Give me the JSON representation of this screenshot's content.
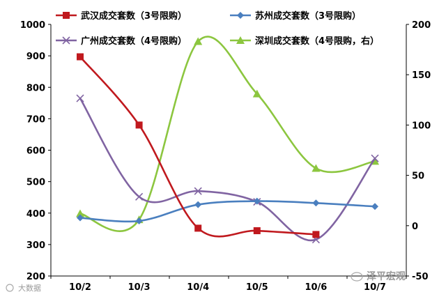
{
  "chart_data": {
    "type": "line",
    "categories": [
      "10/2",
      "10/3",
      "10/4",
      "10/5",
      "10/6",
      "10/7"
    ],
    "y_left": {
      "min": 200,
      "max": 1000,
      "step": 100,
      "ticks": [
        "200",
        "300",
        "400",
        "500",
        "600",
        "700",
        "800",
        "900",
        "1000"
      ]
    },
    "y_right": {
      "min": -50,
      "max": 200,
      "step": 50,
      "ticks": [
        "-50",
        "0",
        "50",
        "100",
        "150",
        "200"
      ]
    },
    "grid": false,
    "legend_position": "top",
    "series": [
      {
        "name": "武汉成交套数（3号限购）",
        "axis": "left",
        "color": "#c0191e",
        "marker": "square",
        "values": [
          897,
          680,
          352,
          344,
          332,
          null
        ]
      },
      {
        "name": "苏州成交套数（3号限购）",
        "axis": "left",
        "color": "#4a7fbf",
        "marker": "diamond",
        "values": [
          385,
          375,
          427,
          438,
          432,
          421
        ]
      },
      {
        "name": "广州成交套数（4号限购）",
        "axis": "left",
        "color": "#8064a2",
        "marker": "x",
        "values": [
          765,
          452,
          470,
          436,
          316,
          574
        ]
      },
      {
        "name": "深圳成交套数（4号限购，右）",
        "axis": "right",
        "color": "#8cc63f",
        "marker": "triangle",
        "values": [
          12,
          6,
          183,
          131,
          57,
          64
        ]
      }
    ]
  },
  "watermarks": {
    "left": "大数据",
    "right": "泽平宏观"
  }
}
